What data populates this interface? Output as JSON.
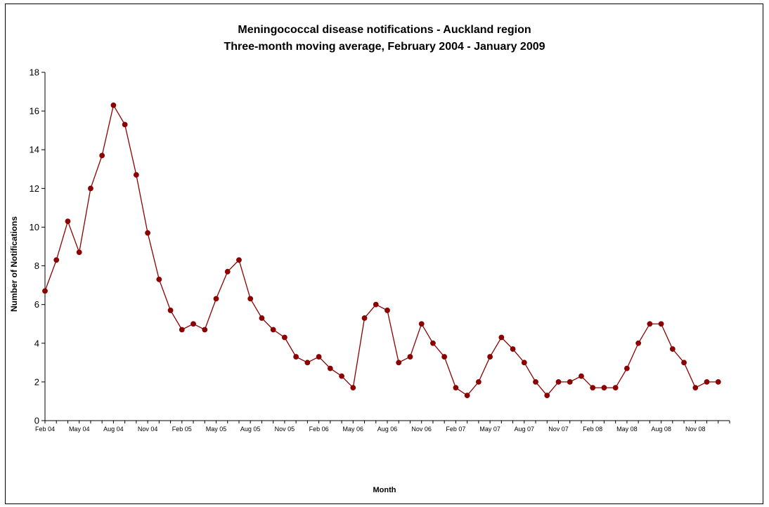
{
  "chart_data": {
    "type": "line",
    "title": "Meningococcal disease notifications - Auckland region",
    "subtitle": "Three-month moving average, February 2004 - January 2009",
    "xlabel": "Month",
    "ylabel": "Number of Notifications",
    "ylim": [
      0,
      18
    ],
    "yticks": [
      "0",
      "2",
      "4",
      "6",
      "8",
      "10",
      "12",
      "14",
      "16",
      "18"
    ],
    "x_tick_labels": [
      "Feb 04",
      "May 04",
      "Aug 04",
      "Nov 04",
      "Feb 05",
      "May 05",
      "Aug 05",
      "Nov 05",
      "Feb 06",
      "May 06",
      "Aug 06",
      "Nov 06",
      "Feb 07",
      "May 07",
      "Aug 07",
      "Nov 07",
      "Feb 08",
      "May 08",
      "Aug 08",
      "Nov 08"
    ],
    "grid": false,
    "series_color": "#8B0000",
    "series": [
      {
        "values": [
          6.7,
          8.3,
          10.3,
          8.7,
          12.0,
          13.7,
          16.3,
          15.3,
          12.7,
          9.7,
          7.3,
          5.7,
          4.7,
          5.0,
          4.7,
          6.3,
          7.7,
          8.3,
          6.3,
          5.3,
          4.7,
          4.3,
          3.3,
          3.0,
          3.3,
          2.7,
          2.3,
          1.7,
          5.3,
          6.0,
          5.7,
          3.0,
          3.3,
          5.0,
          4.0,
          3.3,
          1.7,
          1.3,
          2.0,
          3.3,
          4.3,
          3.7,
          3.0,
          2.0,
          1.3,
          2.0,
          2.0,
          2.3,
          1.7,
          1.7,
          1.7,
          2.7,
          4.0,
          5.0,
          5.0,
          3.7,
          3.0,
          1.7,
          2.0,
          2.0
        ]
      }
    ]
  }
}
